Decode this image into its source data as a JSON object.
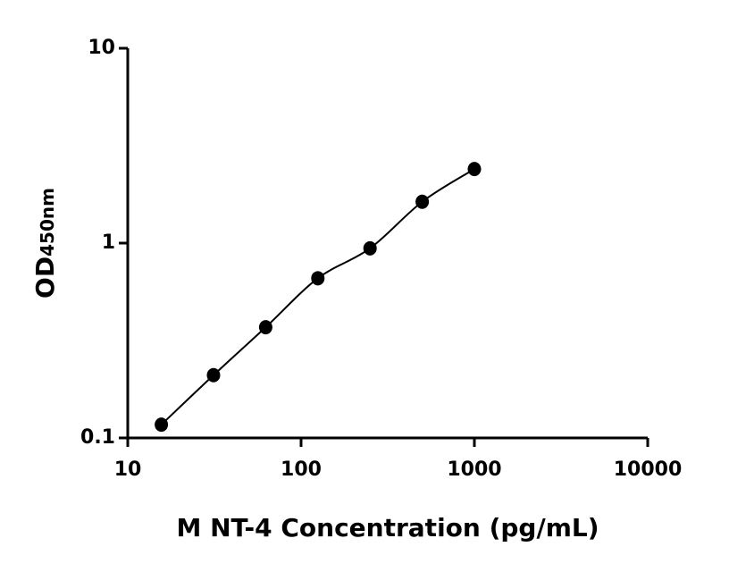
{
  "chart_data": {
    "type": "scatter",
    "x_label": "M NT-4 Concentration (pg/mL)",
    "y_label": "OD",
    "y_label_subscript": "450nm",
    "x": [
      15.625,
      31.25,
      62.5,
      125,
      250,
      500,
      1000
    ],
    "values": [
      0.117,
      0.21,
      0.37,
      0.66,
      0.94,
      1.63,
      2.4
    ],
    "color": "#000000",
    "fit_line": true,
    "x_log": true,
    "y_log": true,
    "xlim": [
      10,
      10000
    ],
    "xticks": [
      10,
      100,
      1000,
      10000
    ],
    "ylim": [
      0.1,
      10
    ],
    "yticks": [
      0.1,
      1,
      10
    ]
  }
}
